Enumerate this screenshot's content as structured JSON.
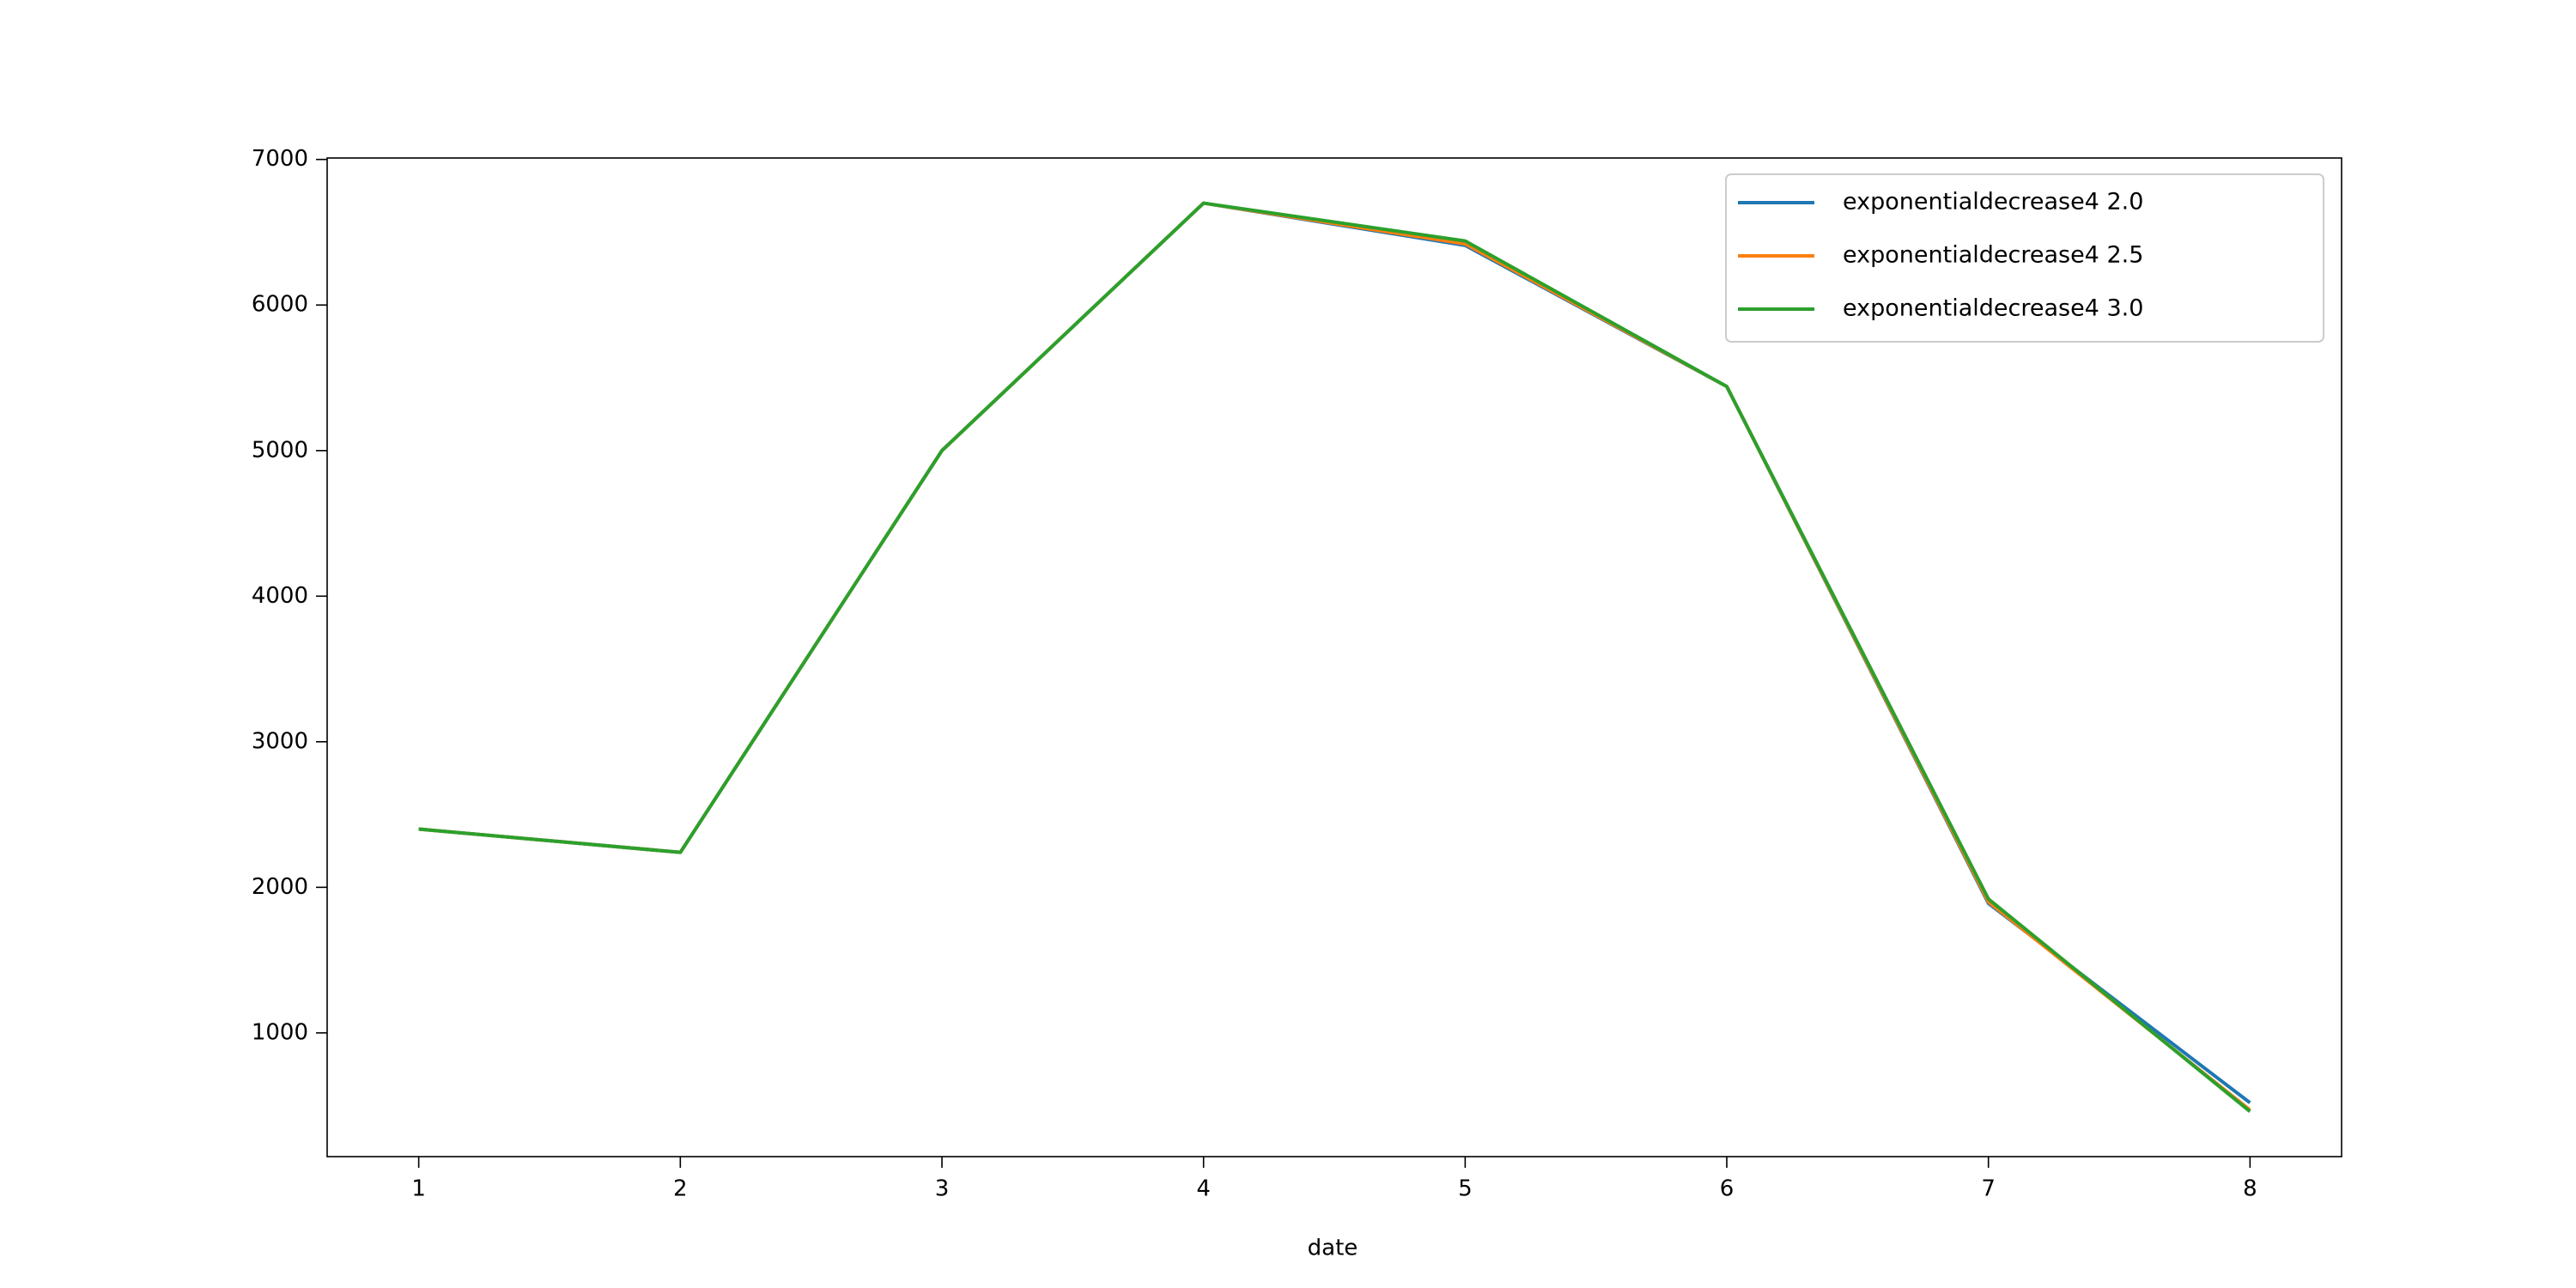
{
  "chart_data": {
    "type": "line",
    "x_label": "date",
    "x": [
      1,
      2,
      3,
      4,
      5,
      6,
      7,
      8
    ],
    "series": [
      {
        "name": "exponentialdecrease4 2.0",
        "color": "#1f77b4",
        "values": [
          2400,
          2240,
          5000,
          6700,
          6410,
          5440,
          1890,
          520
        ]
      },
      {
        "name": "exponentialdecrease4 2.5",
        "color": "#ff7f0e",
        "values": [
          2400,
          2240,
          5000,
          6700,
          6420,
          5440,
          1900,
          470
        ]
      },
      {
        "name": "exponentialdecrease4 3.0",
        "color": "#2ca02c",
        "values": [
          2400,
          2240,
          5000,
          6700,
          6440,
          5440,
          1920,
          460
        ]
      }
    ],
    "xlim": [
      0.65,
      8.35
    ],
    "xticks": [
      1,
      2,
      3,
      4,
      5,
      6,
      7,
      8
    ],
    "ylim": [
      150,
      7010
    ],
    "yticks": [
      1000,
      2000,
      3000,
      4000,
      5000,
      6000,
      7000
    ],
    "grid": false,
    "legend": "upper right"
  }
}
